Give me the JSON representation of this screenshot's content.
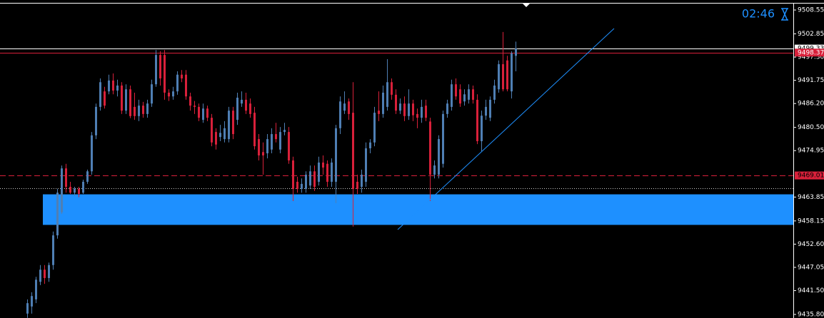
{
  "chart_data": {
    "type": "candlestick",
    "clock": "02:46",
    "up_color": "#4f7fb4",
    "down_color": "#d9203a",
    "ylim": [
      9434.95,
      9510.94
    ],
    "yticks": [
      9508.55,
      9502.85,
      {
        "value": 9497.3,
        "label": "9497.30"
      },
      9491.75,
      {
        "value": 9486.2,
        "label": "9486.20"
      },
      {
        "value": 9480.5,
        "label": "9480.50"
      },
      9474.95,
      9463.85,
      9458.15,
      {
        "value": 9452.6,
        "label": "9452.60"
      },
      9447.05,
      {
        "value": 9441.5,
        "label": "9441.50"
      },
      {
        "value": 9435.8,
        "label": "9435.80"
      }
    ],
    "open": [
      9436.0,
      9437.7,
      9439.4,
      9443.6,
      9446.5,
      9444.5,
      9447.6,
      9454.7,
      9460.2,
      9470.7,
      9466.3,
      9464.9,
      9465.8,
      9464.9,
      9467.5,
      9470.0,
      9478.6,
      9485.4,
      9489.1,
      9489.1,
      9491.7,
      9489.3,
      9490.5,
      9484.5,
      9489.6,
      9485.4,
      9483.2,
      9485.7,
      9483.7,
      9486.2,
      9490.8,
      9497.8,
      9497.8,
      9488.8,
      9487.9,
      9489.1,
      9493.1,
      9493.1,
      9487.9,
      9485.7,
      9485.4,
      9482.3,
      9485.0,
      9482.8,
      9479.4,
      9478.2,
      9477.7,
      9477.7,
      9484.5,
      9482.3,
      9486.2,
      9487.1,
      9486.2,
      9484.0,
      9477.7,
      9474.6,
      9474.3,
      9475.2,
      9478.9,
      9475.2,
      9479.4,
      9479.4,
      9472.6,
      9467.5,
      9465.8,
      9465.8,
      9466.6,
      9470.0,
      9467.5,
      9472.1,
      9471.8,
      9467.5,
      9467.5,
      9480.3,
      9484.5,
      9486.7,
      9484.0,
      9467.5,
      9466.3,
      9467.5,
      9475.5,
      9476.9,
      9484.5,
      9483.7,
      9485.4,
      9491.3,
      9488.3,
      9484.5,
      9486.2,
      9483.2,
      9486.2,
      9483.7,
      9482.8,
      9485.7,
      9481.9,
      9469.2,
      9469.2,
      9471.8,
      9483.7,
      9485.4,
      9490.8,
      9489.6,
      9486.7,
      9487.1,
      9489.6,
      9487.1,
      9477.2,
      9483.3,
      9482.8,
      9487.1,
      9489.6,
      9495.6,
      9496.5,
      9489.1,
      9497.6
    ],
    "high": [
      9439.4,
      9441.1,
      9444.8,
      9447.6,
      9447.6,
      9448.2,
      9455.6,
      9465.8,
      9471.4,
      9471.8,
      9467.5,
      9466.3,
      9466.3,
      9468.0,
      9470.4,
      9479.4,
      9486.2,
      9492.2,
      9490.2,
      9493.1,
      9493.4,
      9491.9,
      9491.3,
      9490.8,
      9490.5,
      9488.8,
      9487.1,
      9486.6,
      9487.1,
      9491.9,
      9499.0,
      9498.7,
      9499.0,
      9489.6,
      9490.2,
      9493.9,
      9494.2,
      9494.2,
      9488.8,
      9486.8,
      9486.2,
      9486.2,
      9485.7,
      9483.7,
      9480.3,
      9481.1,
      9482.0,
      9485.4,
      9485.4,
      9488.8,
      9489.1,
      9488.8,
      9487.4,
      9485.4,
      9478.9,
      9476.9,
      9478.9,
      9480.3,
      9481.6,
      9480.6,
      9481.6,
      9480.6,
      9473.5,
      9468.7,
      9468.3,
      9470.0,
      9471.4,
      9471.4,
      9473.5,
      9473.8,
      9472.6,
      9473.1,
      9481.1,
      9487.9,
      9489.1,
      9487.4,
      9491.3,
      9469.2,
      9470.4,
      9476.9,
      9477.7,
      9485.4,
      9489.1,
      9490.5,
      9496.8,
      9492.2,
      9489.6,
      9487.4,
      9487.9,
      9489.6,
      9487.1,
      9485.0,
      9487.1,
      9487.1,
      9482.8,
      9472.6,
      9478.6,
      9484.5,
      9487.1,
      9491.9,
      9492.2,
      9490.8,
      9489.6,
      9490.8,
      9490.5,
      9488.4,
      9484.5,
      9487.1,
      9487.9,
      9491.9,
      9496.5,
      9503.3,
      9497.6,
      9498.7,
      9501.0
    ],
    "low": [
      9435.0,
      9436.0,
      9438.5,
      9442.8,
      9443.1,
      9443.6,
      9446.5,
      9453.9,
      9459.8,
      9464.9,
      9464.6,
      9464.1,
      9463.8,
      9464.6,
      9467.0,
      9469.2,
      9477.7,
      9484.5,
      9485.0,
      9488.4,
      9488.4,
      9487.9,
      9483.7,
      9483.7,
      9482.7,
      9482.3,
      9482.0,
      9482.8,
      9482.8,
      9485.4,
      9490.2,
      9490.5,
      9487.1,
      9486.8,
      9487.1,
      9488.3,
      9491.3,
      9487.1,
      9484.5,
      9483.7,
      9482.0,
      9481.6,
      9482.0,
      9476.0,
      9475.2,
      9477.2,
      9476.9,
      9476.9,
      9477.7,
      9481.1,
      9485.4,
      9483.7,
      9482.8,
      9475.2,
      9472.6,
      9469.2,
      9473.1,
      9474.3,
      9476.9,
      9474.3,
      9478.6,
      9471.8,
      9462.9,
      9464.9,
      9464.9,
      9464.9,
      9465.8,
      9465.3,
      9466.6,
      9469.2,
      9466.3,
      9466.3,
      9462.4,
      9478.9,
      9483.7,
      9482.3,
      9456.8,
      9464.6,
      9464.9,
      9466.3,
      9474.3,
      9476.0,
      9482.0,
      9482.8,
      9484.5,
      9487.1,
      9483.7,
      9483.7,
      9482.0,
      9482.3,
      9482.0,
      9480.3,
      9481.6,
      9482.0,
      9462.9,
      9468.3,
      9468.3,
      9470.9,
      9482.8,
      9484.5,
      9487.1,
      9485.4,
      9485.7,
      9486.2,
      9486.2,
      9476.5,
      9474.8,
      9482.3,
      9482.0,
      9486.2,
      9488.8,
      9489.1,
      9489.1,
      9487.4,
      9493.9
    ],
    "close": [
      9438.5,
      9440.2,
      9444.1,
      9446.5,
      9444.5,
      9447.6,
      9454.7,
      9464.9,
      9470.7,
      9466.3,
      9464.9,
      9465.8,
      9464.6,
      9467.5,
      9470.0,
      9478.6,
      9485.4,
      9491.3,
      9485.7,
      9491.7,
      9489.3,
      9490.5,
      9484.5,
      9489.6,
      9483.2,
      9483.2,
      9485.7,
      9483.7,
      9486.2,
      9490.8,
      9497.8,
      9492.2,
      9488.8,
      9487.9,
      9489.1,
      9493.1,
      9492.2,
      9487.9,
      9485.7,
      9485.4,
      9482.8,
      9485.0,
      9482.8,
      9476.9,
      9476.4,
      9479.2,
      9480.3,
      9484.5,
      9478.9,
      9487.6,
      9487.1,
      9484.5,
      9483.7,
      9476.0,
      9473.8,
      9473.8,
      9477.7,
      9478.9,
      9477.7,
      9479.4,
      9479.9,
      9472.6,
      9465.8,
      9465.8,
      9467.0,
      9469.2,
      9470.0,
      9466.3,
      9472.1,
      9470.9,
      9467.5,
      9472.1,
      9480.3,
      9486.7,
      9486.2,
      9483.7,
      9465.8,
      9465.8,
      9469.2,
      9475.5,
      9476.9,
      9484.0,
      9483.7,
      9488.8,
      9491.3,
      9488.3,
      9484.5,
      9486.2,
      9483.2,
      9486.2,
      9483.4,
      9482.8,
      9485.4,
      9482.8,
      9469.2,
      9471.4,
      9477.7,
      9483.7,
      9486.2,
      9490.8,
      9487.9,
      9486.2,
      9488.4,
      9489.6,
      9487.1,
      9477.2,
      9483.3,
      9485.4,
      9487.1,
      9490.5,
      9495.6,
      9489.6,
      9489.6,
      9498.2,
      9499.3
    ],
    "levels": [
      {
        "price": 9499.33,
        "color": "#ffffff",
        "style": "solid",
        "label_fill": "#ffffff",
        "label_color": "#000000"
      },
      {
        "price": 9498.37,
        "color": "#d9203a",
        "style": "solid",
        "label_fill": "#d9203a",
        "label_color": "#ffffff"
      },
      {
        "price": 9469.01,
        "color": "#d9203a",
        "style": "dashed",
        "label_fill": "#d9203a",
        "label_color": "#000000"
      }
    ],
    "dotted_level": {
      "price": 9465.95,
      "color": "#c8c8c8"
    },
    "zone": {
      "start": 4,
      "low": 9457.2,
      "high": 9464.5,
      "color": "#1e90ff"
    },
    "trendline": {
      "start": [
        86.5,
        9456.07
      ],
      "end": [
        137,
        9504.12
      ],
      "color": "#1e90ff"
    }
  }
}
